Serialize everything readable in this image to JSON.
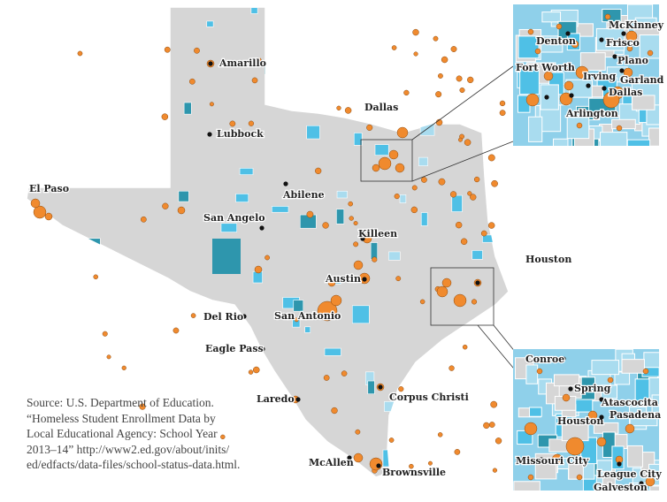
{
  "map": {
    "colors": {
      "land": "#d6d6d6",
      "light": "#a9dcef",
      "mid": "#4fc0e6",
      "dark": "#2e96ad",
      "bubble": "#f08a2e",
      "dot": "#111111"
    },
    "cities": [
      "Amarillo",
      "Lubbock",
      "Dallas",
      "El Paso",
      "Abilene",
      "San Angelo",
      "Killeen",
      "Austin",
      "Houston",
      "Del Rio",
      "San Antonio",
      "Eagle Pass",
      "Laredo",
      "Corpus Christi",
      "McAllen",
      "Brownsville"
    ],
    "dallas_inset_cities": [
      "McKinney",
      "Denton",
      "Frisco",
      "Plano",
      "Fort Worth",
      "Irving",
      "Garland",
      "Dallas",
      "Arlington"
    ],
    "houston_inset_cities": [
      "Conroe",
      "Spring",
      "Atascocita",
      "Houston",
      "Pasadena",
      "Missouri City",
      "League City",
      "Galveston"
    ]
  },
  "source": {
    "lines": [
      "Source: U.S. Department of Education.",
      "“Homeless Student Enrollment Data by",
      "Local Educational Agency: School Year",
      "2013–14” http://www2.ed.gov/about/inits/",
      "ed/edfacts/data-files/school-status-data.html."
    ]
  }
}
